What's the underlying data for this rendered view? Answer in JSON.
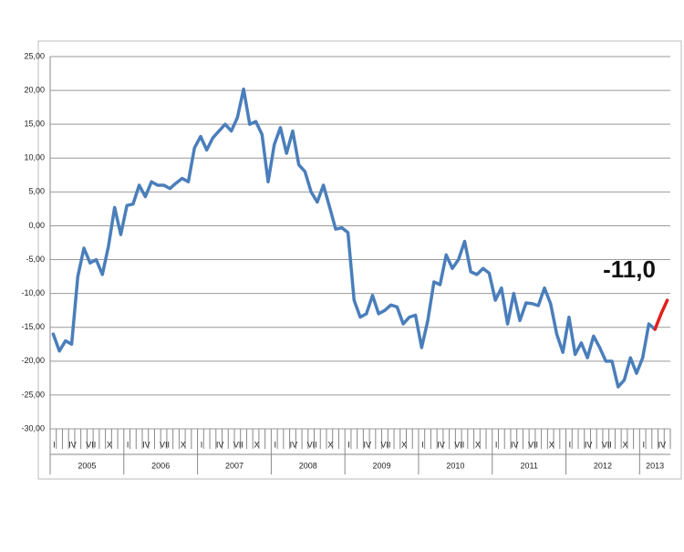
{
  "chart_data": {
    "type": "line",
    "categories": [
      "I",
      null,
      null,
      "IV",
      null,
      null,
      "VII",
      null,
      null,
      "X",
      null,
      null,
      "I",
      null,
      null,
      "IV",
      null,
      null,
      "VII",
      null,
      null,
      "X",
      null,
      null,
      "I",
      null,
      null,
      "IV",
      null,
      null,
      "VII",
      null,
      null,
      "X",
      null,
      null,
      "I",
      null,
      null,
      "IV",
      null,
      null,
      "VII",
      null,
      null,
      "X",
      null,
      null,
      "I",
      null,
      null,
      "IV",
      null,
      null,
      "VII",
      null,
      null,
      "X",
      null,
      null,
      "I",
      null,
      null,
      "IV",
      null,
      null,
      "VII",
      null,
      null,
      "X",
      null,
      null,
      "I",
      null,
      null,
      "IV",
      null,
      null,
      "VII",
      null,
      null,
      "X",
      null,
      null,
      "I",
      null,
      null,
      "IV",
      null,
      null,
      "VII",
      null,
      null,
      "X",
      null,
      null,
      "I",
      null,
      null,
      "IV",
      null
    ],
    "years": [
      "2005",
      "2006",
      "2007",
      "2008",
      "2009",
      "2010",
      "2011",
      "2012",
      "2013"
    ],
    "series": [
      {
        "color": "#4a7ebb",
        "values": [
          -16,
          -18.5,
          -17,
          -17.5,
          -7.5,
          -3.3,
          -5.5,
          -5,
          -7.2,
          -3,
          2.7,
          -1.3,
          3,
          3.2,
          6,
          4.3,
          6.5,
          6,
          6,
          5.5,
          6.3,
          7,
          6.5,
          11.5,
          13.2,
          11.2,
          13,
          14,
          15,
          14,
          16,
          20.2,
          15,
          15.4,
          13.5,
          6.5,
          12,
          14.5,
          10.7,
          14,
          9,
          8,
          5,
          3.5,
          6,
          2.8,
          -0.5,
          -0.3,
          -1,
          -11,
          -13.5,
          -13,
          -10.3,
          -13,
          -12.5,
          -11.7,
          -12,
          -14.5,
          -13.5,
          -13.2,
          -18,
          -14,
          -8.3,
          -8.7,
          -4.3,
          -6.3,
          -5,
          -2.3,
          -6.8,
          -7.2,
          -6.3,
          -7,
          -11,
          -9.2,
          -14.5,
          -10,
          -14,
          -11.4,
          -11.5,
          -11.8,
          -9.2,
          -11.5,
          -16,
          -18.7,
          -13.5,
          -19,
          -17.3,
          -19.5,
          -16.3,
          -18,
          -20,
          -20,
          -23.8,
          -22.8,
          -19.5,
          -21.8,
          -19.5,
          -14.5,
          -15.3,
          null,
          null
        ]
      },
      {
        "color": "#e0201b",
        "values": [
          null,
          null,
          null,
          null,
          null,
          null,
          null,
          null,
          null,
          null,
          null,
          null,
          null,
          null,
          null,
          null,
          null,
          null,
          null,
          null,
          null,
          null,
          null,
          null,
          null,
          null,
          null,
          null,
          null,
          null,
          null,
          null,
          null,
          null,
          null,
          null,
          null,
          null,
          null,
          null,
          null,
          null,
          null,
          null,
          null,
          null,
          null,
          null,
          null,
          null,
          null,
          null,
          null,
          null,
          null,
          null,
          null,
          null,
          null,
          null,
          null,
          null,
          null,
          null,
          null,
          null,
          null,
          null,
          null,
          null,
          null,
          null,
          null,
          null,
          null,
          null,
          null,
          null,
          null,
          null,
          null,
          null,
          null,
          null,
          null,
          null,
          null,
          null,
          null,
          null,
          null,
          null,
          null,
          null,
          null,
          null,
          null,
          null,
          -15.3,
          -13,
          -11
        ]
      }
    ],
    "annotation": "-11,0",
    "ylim": [
      -30,
      25
    ],
    "yticks": [
      {
        "value": -30,
        "label": "-30,00"
      },
      {
        "value": -25,
        "label": "-25,00"
      },
      {
        "value": -20,
        "label": "-20,00"
      },
      {
        "value": -15,
        "label": "-15,00"
      },
      {
        "value": -10,
        "label": "-10,00"
      },
      {
        "value": -5,
        "label": "-5,00"
      },
      {
        "value": 0,
        "label": "0,00"
      },
      {
        "value": 5,
        "label": "5,00"
      },
      {
        "value": 10,
        "label": "10,00"
      },
      {
        "value": 15,
        "label": "15,00"
      },
      {
        "value": 20,
        "label": "20,00"
      },
      {
        "value": 25,
        "label": "25,00"
      }
    ],
    "grid": true
  }
}
